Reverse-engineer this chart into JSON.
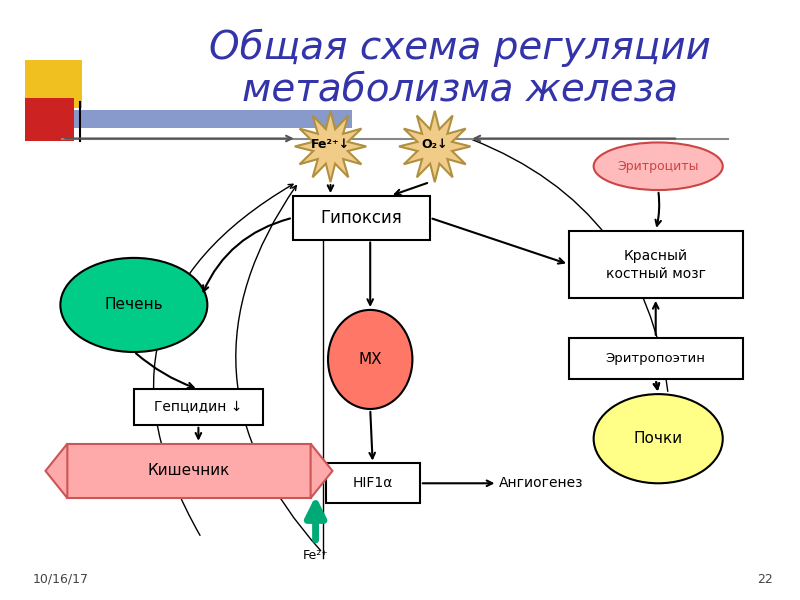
{
  "title_line1": "Общая схема регуляции",
  "title_line2": "метаболизма железа",
  "title_color": "#3333aa",
  "title_fontsize": 26,
  "bg_color": "#ffffff",
  "footer_date": "10/16/17",
  "footer_page": "22",
  "sq_yellow": "#f0c020",
  "sq_red": "#cc2222",
  "sq_blue": "#8899cc",
  "star_color": "#f0cc88",
  "star_border": "#b09040",
  "pech_color": "#00cc88",
  "mx_color": "#ff7766",
  "pochki_color": "#ffff88",
  "eritr_color": "#ffbbbb",
  "eritr_border": "#cc4444",
  "kish_color": "#ffaaaa",
  "kish_border": "#cc5555",
  "green_arrow": "#00aa77"
}
